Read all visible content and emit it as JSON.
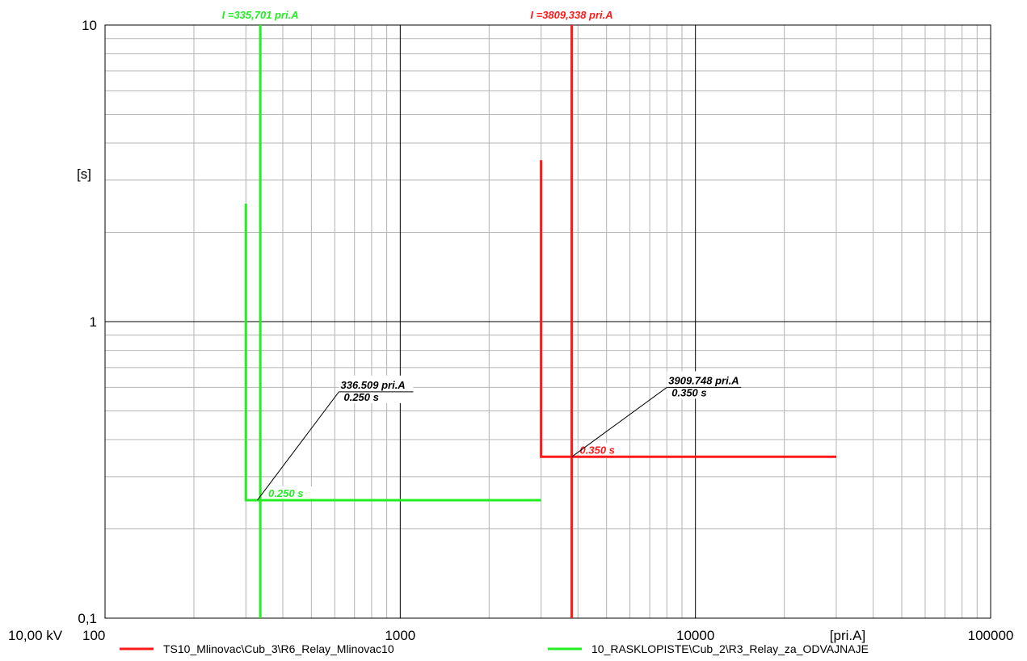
{
  "chart_data": {
    "type": "line",
    "x_scale": "log",
    "y_scale": "log",
    "xlim": [
      100,
      100000
    ],
    "ylim": [
      0.1,
      10
    ],
    "x_ticks": [
      "100",
      "1000",
      "10000",
      "100000"
    ],
    "y_ticks": [
      "0,1",
      "1",
      "10"
    ],
    "xlabel": "[pri.A]",
    "ylabel": "[s]",
    "voltage_label": "10,00 kV",
    "grid": true,
    "legend_placement": "bottom",
    "series": [
      {
        "name": "TS10_Mlinovac\\Cub_3\\R6_Relay_Mlinovac10",
        "color": "#ff1a1a",
        "points": [
          [
            3000,
            3.5
          ],
          [
            3000,
            0.35
          ],
          [
            30000,
            0.35
          ]
        ],
        "marker": {
          "current": 3809.338,
          "label": "I =3809,338 pri.A"
        },
        "time_label": "0.350 s",
        "annotation": {
          "x": 3909.748,
          "y": 0.35,
          "line1": "3909.748 pri.A",
          "line2": "0.350 s",
          "text_x": 8000,
          "text_y": 0.6
        }
      },
      {
        "name": "10_RASKLOPISTE\\Cub_2\\R3_Relay_za_ODVAJNAJE",
        "color": "#22ee22",
        "points": [
          [
            300,
            2.5
          ],
          [
            300,
            0.25
          ],
          [
            3000,
            0.25
          ]
        ],
        "marker": {
          "current": 335.701,
          "label": "I =335,701 pri.A"
        },
        "time_label": "0.250 s",
        "annotation": {
          "x": 336.509,
          "y": 0.25,
          "line1": "336.509 pri.A",
          "line2": "0.250 s",
          "text_x": 620,
          "text_y": 0.58
        }
      }
    ]
  }
}
